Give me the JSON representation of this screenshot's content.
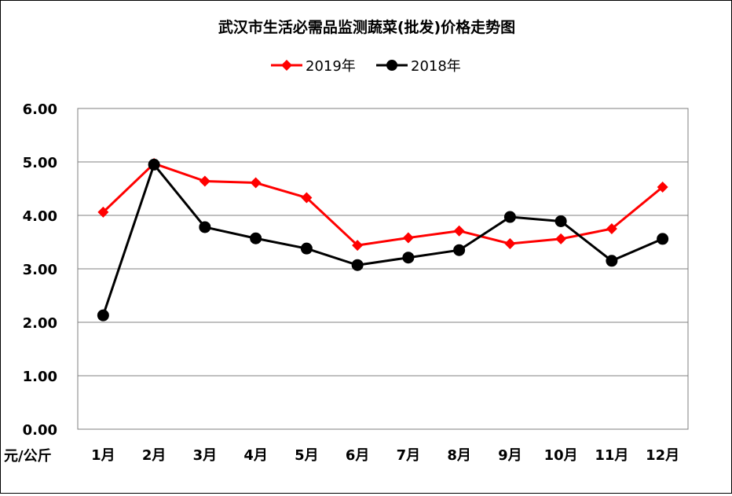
{
  "chart_data": {
    "type": "line",
    "title": "武汉市生活必需品监测蔬菜(批发)价格走势图",
    "ylabel": "元/公斤",
    "ylim": [
      0,
      6
    ],
    "yticks": [
      "0.00",
      "1.00",
      "2.00",
      "3.00",
      "4.00",
      "5.00",
      "6.00"
    ],
    "categories": [
      "1月",
      "2月",
      "3月",
      "4月",
      "5月",
      "6月",
      "7月",
      "8月",
      "9月",
      "10月",
      "11月",
      "12月"
    ],
    "series": [
      {
        "name": "2019年",
        "color": "#ff0000",
        "marker": "diamond",
        "values": [
          4.06,
          4.97,
          4.64,
          4.61,
          4.33,
          3.44,
          3.58,
          3.71,
          3.47,
          3.56,
          3.75,
          4.53
        ]
      },
      {
        "name": "2018年",
        "color": "#000000",
        "marker": "circle",
        "values": [
          2.13,
          4.95,
          3.78,
          3.57,
          3.38,
          3.07,
          3.21,
          3.35,
          3.97,
          3.89,
          3.15,
          3.56
        ]
      }
    ],
    "grid": true,
    "legend": "top-center"
  }
}
